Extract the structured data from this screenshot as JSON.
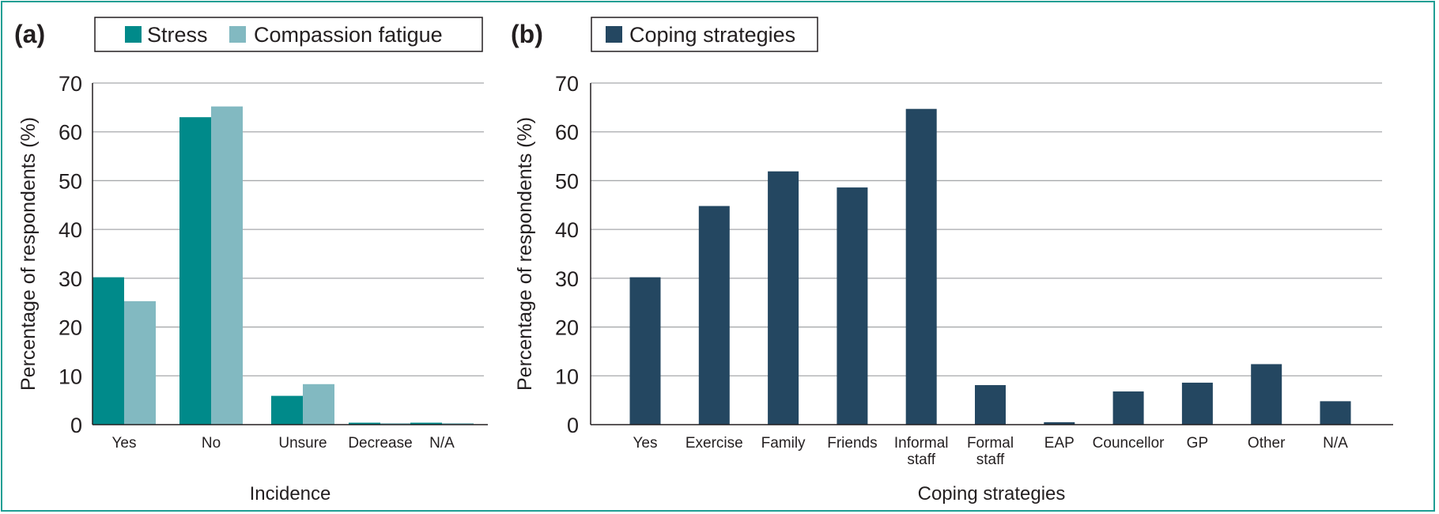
{
  "chart_data": [
    {
      "panel": "(a)",
      "type": "bar",
      "categories": [
        "Yes",
        "No",
        "Unsure",
        "Decrease",
        "N/A"
      ],
      "series": [
        {
          "name": "Stress",
          "color": "#008a8a",
          "values": [
            30.2,
            63.0,
            5.9,
            0.4,
            0.4
          ]
        },
        {
          "name": "Compassion fatigue",
          "color": "#82b9c1",
          "values": [
            25.3,
            65.2,
            8.3,
            0.3,
            0.3
          ]
        }
      ],
      "xlabel": "Incidence",
      "ylabel": "Percentage of respondents (%)",
      "ylim": [
        0,
        70
      ],
      "yticks": [
        0,
        10,
        20,
        30,
        40,
        50,
        60,
        70
      ],
      "grid": true,
      "legend": "top"
    },
    {
      "panel": "(b)",
      "type": "bar",
      "categories": [
        "Yes",
        "Exercise",
        "Family",
        "Friends",
        "Informal staff",
        "Formal staff",
        "EAP",
        "Councellor",
        "GP",
        "Other",
        "N/A"
      ],
      "series": [
        {
          "name": "Coping strategies",
          "color": "#244761",
          "values": [
            30.2,
            44.8,
            51.9,
            48.6,
            64.7,
            8.1,
            0.5,
            6.8,
            8.6,
            12.4,
            4.8
          ]
        }
      ],
      "xlabel": "Coping strategies",
      "ylabel": "Percentage of respondents (%)",
      "ylim": [
        0,
        70
      ],
      "yticks": [
        0,
        10,
        20,
        30,
        40,
        50,
        60,
        70
      ],
      "grid": true,
      "legend": "top"
    }
  ]
}
